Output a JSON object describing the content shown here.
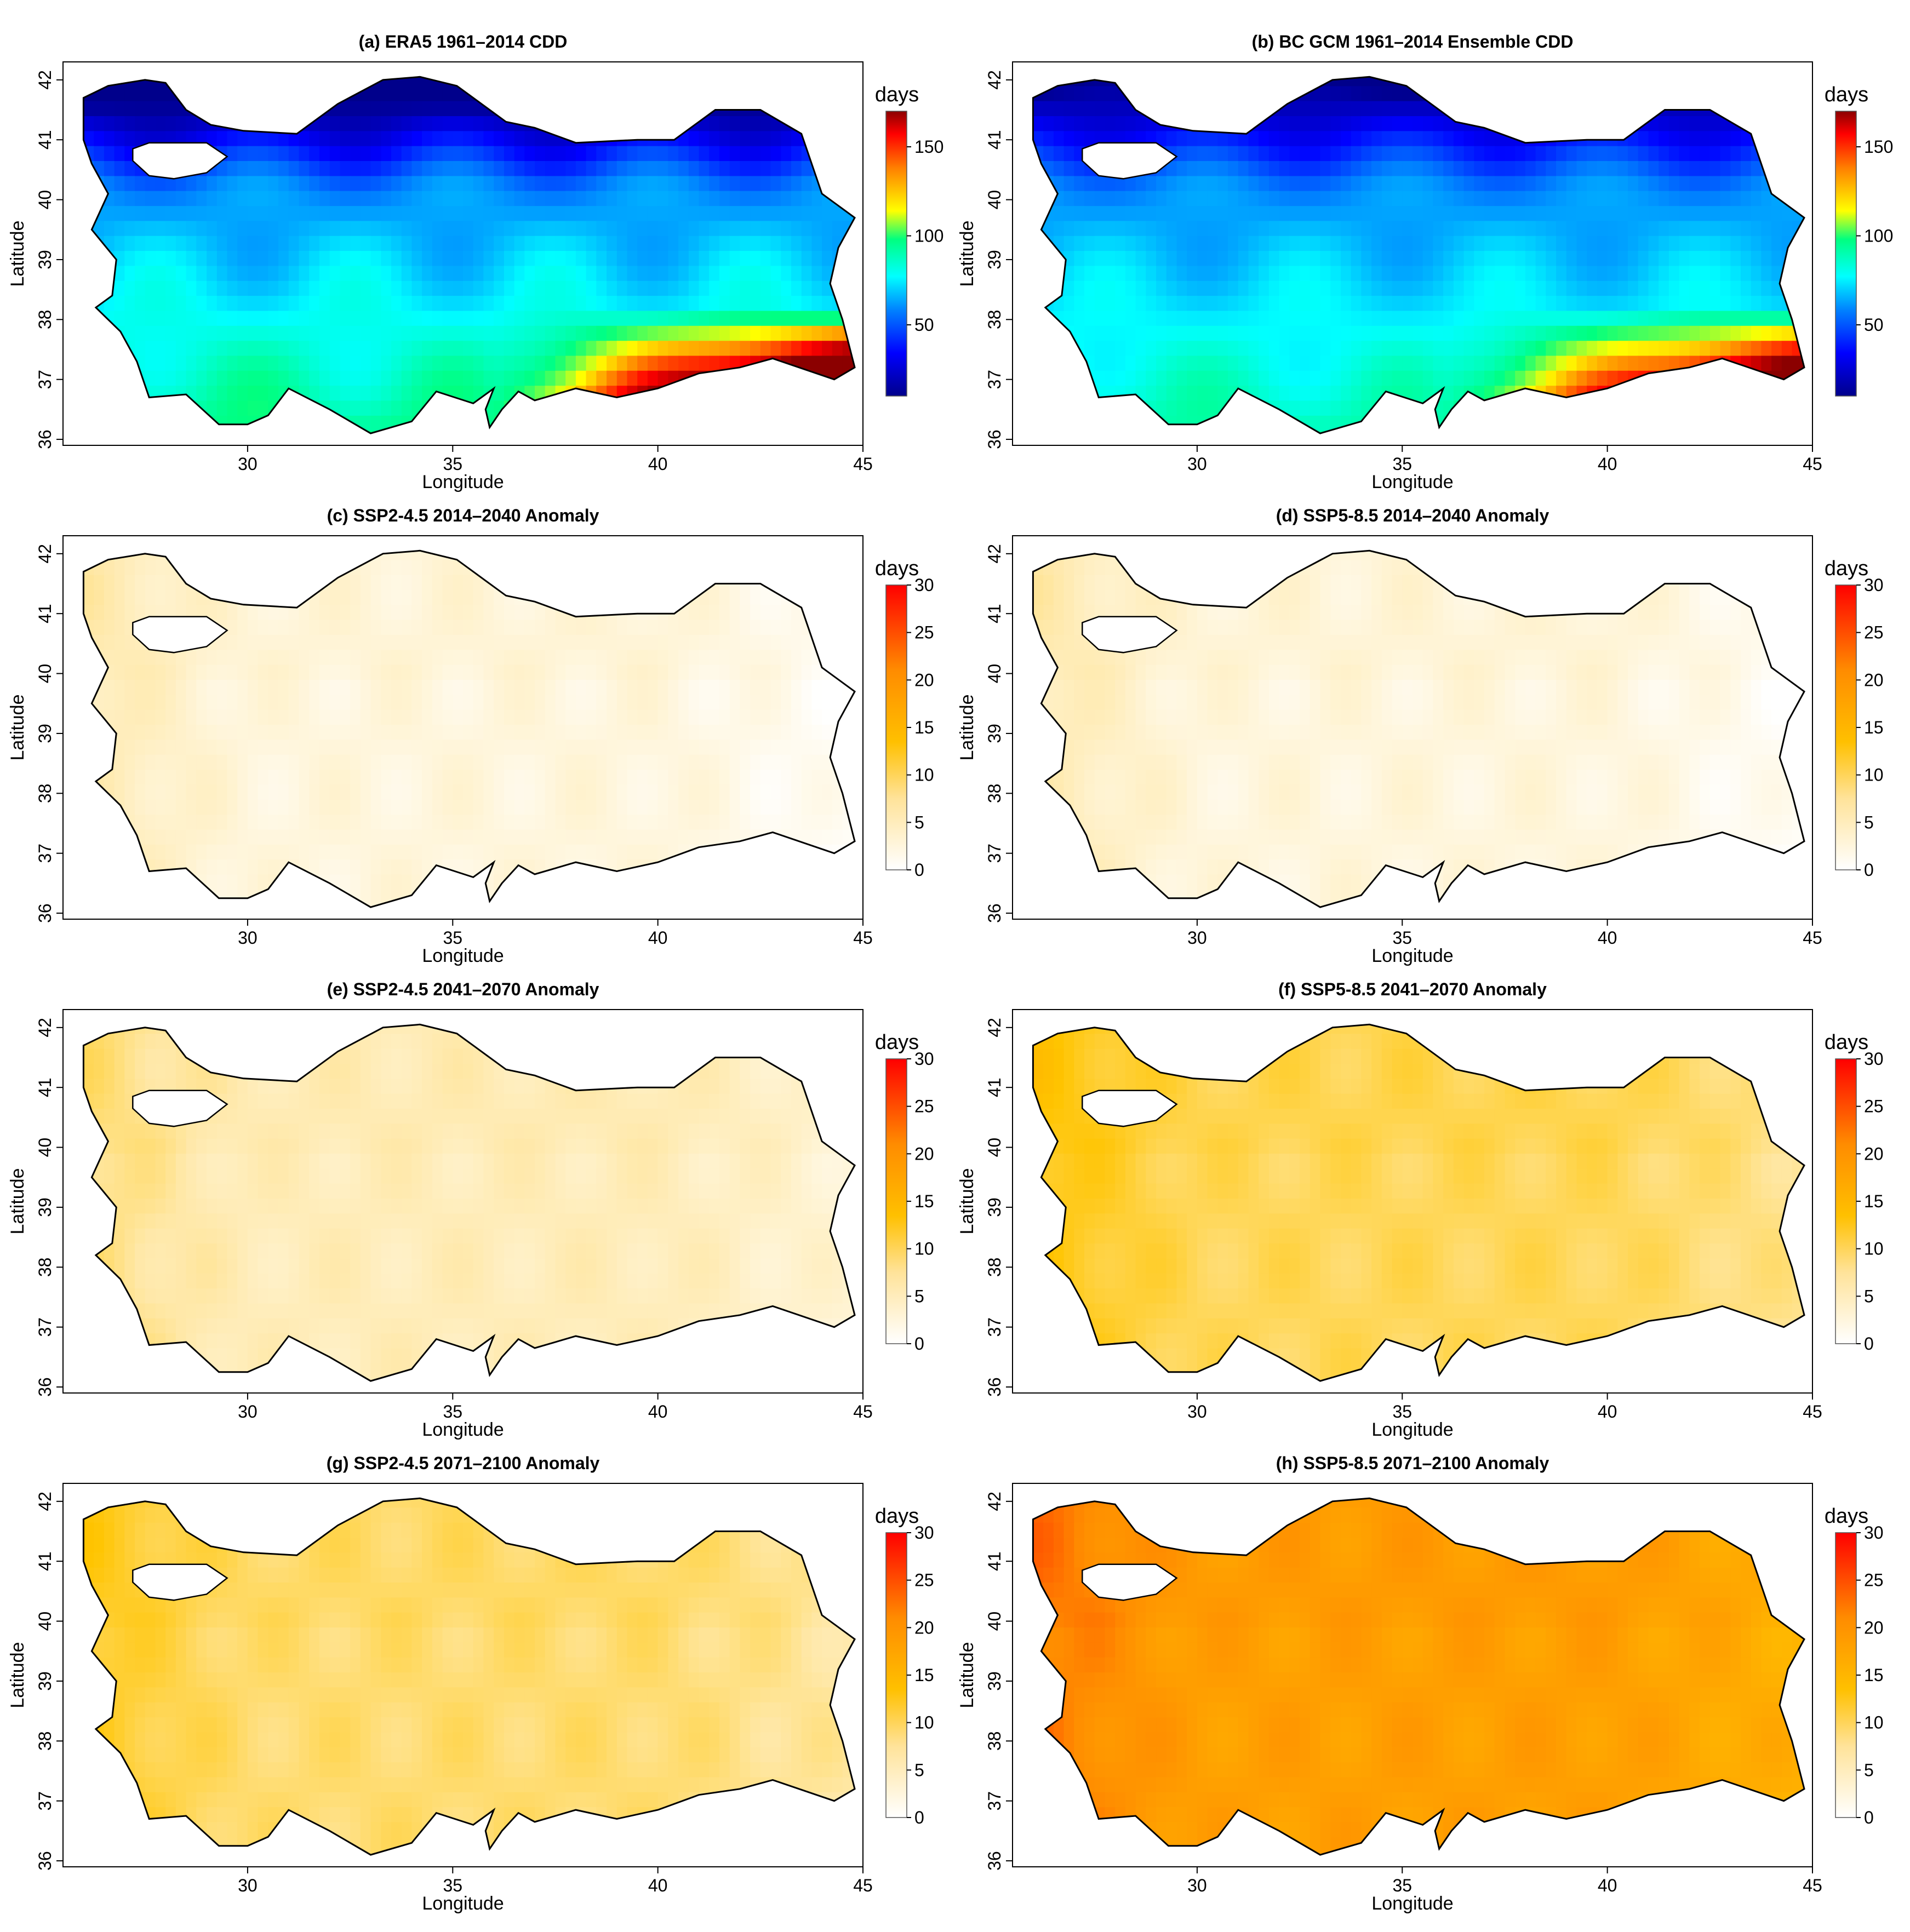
{
  "figure": {
    "panels": [
      {
        "id": "a",
        "title": "(a) ERA5 1961–2014 CDD",
        "type": "baseline"
      },
      {
        "id": "b",
        "title": "(b) BC GCM 1961–2014 Ensemble CDD",
        "type": "baseline"
      },
      {
        "id": "c",
        "title": "(c) SSP2-4.5 2014–2040 Anomaly",
        "type": "anomaly"
      },
      {
        "id": "d",
        "title": "(d) SSP5-8.5 2014–2040 Anomaly",
        "type": "anomaly"
      },
      {
        "id": "e",
        "title": "(e) SSP2-4.5 2041–2070 Anomaly",
        "type": "anomaly"
      },
      {
        "id": "f",
        "title": "(f) SSP5-8.5 2041–2070 Anomaly",
        "type": "anomaly"
      },
      {
        "id": "g",
        "title": "(g) SSP2-4.5 2071–2100 Anomaly",
        "type": "anomaly"
      },
      {
        "id": "h",
        "title": "(h) SSP5-8.5 2071–2100 Anomaly",
        "type": "anomaly"
      }
    ],
    "axes": {
      "xlabel": "Longitude",
      "ylabel": "Latitude",
      "xticks": [
        "30",
        "35",
        "40",
        "45"
      ],
      "yticks": [
        "36",
        "37",
        "38",
        "39",
        "40",
        "41",
        "42"
      ],
      "xlim": [
        25.5,
        45
      ],
      "ylim": [
        35.9,
        42.3
      ]
    },
    "legends": {
      "baseline": {
        "title": "days",
        "ticks": [
          "50",
          "100",
          "150"
        ],
        "range": [
          10,
          170
        ],
        "colors": [
          "#00008b",
          "#0000ff",
          "#0080ff",
          "#00ffff",
          "#00ff80",
          "#ffff00",
          "#ff8000",
          "#ff0000",
          "#8b0000"
        ]
      },
      "anomaly": {
        "title": "days",
        "ticks": [
          "0",
          "5",
          "10",
          "15",
          "20",
          "25",
          "30"
        ],
        "range": [
          0,
          30
        ],
        "colors": [
          "#ffffff",
          "#ffe8a8",
          "#ffc400",
          "#ff8c00",
          "#ff0000"
        ]
      }
    }
  },
  "chart_data": {
    "type": "heatmap",
    "variable": "CDD",
    "units": "days",
    "panels": [
      {
        "id": "a",
        "kind": "baseline",
        "description_of_values": "Low 20-40 over north/Black Sea coast, 50-80 central Anatolia, 120-170 southeast"
      },
      {
        "id": "b",
        "kind": "baseline",
        "description_of_values": "Low 20-40 north, 50-80 central, 100-150 southeast"
      },
      {
        "id": "c",
        "kind": "anomaly",
        "mean_level": 3
      },
      {
        "id": "d",
        "kind": "anomaly",
        "mean_level": 3
      },
      {
        "id": "e",
        "kind": "anomaly",
        "mean_level": 6
      },
      {
        "id": "f",
        "kind": "anomaly",
        "mean_level": 11
      },
      {
        "id": "g",
        "kind": "anomaly",
        "mean_level": 10
      },
      {
        "id": "h",
        "kind": "anomaly",
        "mean_level": 20
      }
    ]
  }
}
